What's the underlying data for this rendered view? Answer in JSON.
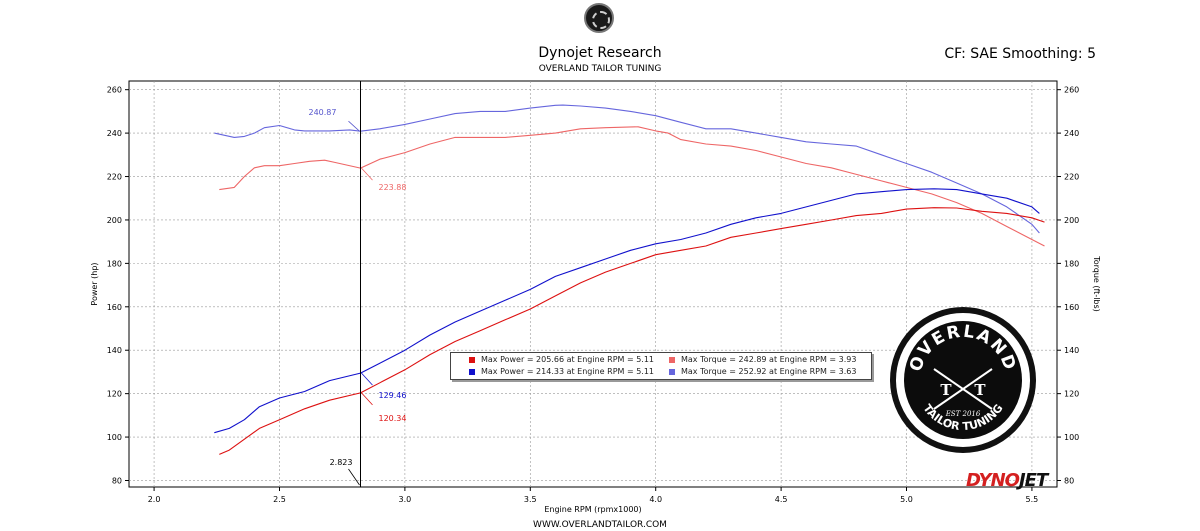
{
  "header": {
    "title": "Dynojet Research",
    "subtitle": "OVERLAND TAILOR TUNING",
    "cf_label": "CF: SAE Smoothing: 5"
  },
  "legend": {
    "items": [
      {
        "text": "Max Power = 205.66 at Engine RPM = 5.11",
        "color": "#dd1111"
      },
      {
        "text": "Max Power = 214.33 at Engine RPM = 5.11",
        "color": "#1111cc"
      },
      {
        "text": "Max Torque = 242.89 at Engine RPM = 3.93",
        "color": "#ee6666"
      },
      {
        "text": "Max Torque = 252.92 at Engine RPM = 3.63",
        "color": "#6666dd"
      }
    ]
  },
  "badge": {
    "top_text": "OVERLAND",
    "bottom_text": "TAILOR TUNING",
    "letters": [
      "T",
      "T"
    ],
    "est": "EST 2016"
  },
  "footer": {
    "url": "WWW.OVERLANDTAILOR.COM",
    "logo_left": "DYNO",
    "logo_right": "JET"
  },
  "chart_data": {
    "type": "line",
    "title": "Dynojet Research",
    "xlabel": "Engine RPM (rpmx1000)",
    "ylabel": "Power (hp)",
    "y2label": "Torque (ft-lbs)",
    "xlim": [
      1.9,
      5.6
    ],
    "ylim": [
      77,
      264
    ],
    "x_ticks": [
      "2.0",
      "2.5",
      "3.0",
      "3.5",
      "4.0",
      "4.5",
      "5.0",
      "5.5"
    ],
    "x_tick_values": [
      2.0,
      2.5,
      3.0,
      3.5,
      4.0,
      4.5,
      5.0,
      5.5
    ],
    "y_ticks": [
      "80",
      "100",
      "120",
      "140",
      "160",
      "180",
      "200",
      "220",
      "240",
      "260"
    ],
    "y_tick_values": [
      80,
      100,
      120,
      140,
      160,
      180,
      200,
      220,
      240,
      260
    ],
    "grid": true,
    "cursor": {
      "x": 2.823,
      "x_label": "2.823",
      "annotations": [
        {
          "value": 240.87,
          "label": "240.87",
          "color": "#5555cc"
        },
        {
          "value": 223.88,
          "label": "223.88",
          "color": "#ee6666"
        },
        {
          "value": 129.46,
          "label": "129.46",
          "color": "#1111cc"
        },
        {
          "value": 120.34,
          "label": "120.34",
          "color": "#dd1111"
        }
      ]
    },
    "series": [
      {
        "name": "Max Torque = 252.92 at Engine RPM = 3.63",
        "kind": "torque",
        "color": "#6666dd",
        "x": [
          2.24,
          2.32,
          2.36,
          2.4,
          2.44,
          2.5,
          2.56,
          2.6,
          2.7,
          2.78,
          2.823,
          2.9,
          3.0,
          3.1,
          3.2,
          3.3,
          3.4,
          3.5,
          3.6,
          3.63,
          3.7,
          3.8,
          3.9,
          4.0,
          4.1,
          4.2,
          4.3,
          4.4,
          4.5,
          4.6,
          4.7,
          4.8,
          4.9,
          5.0,
          5.1,
          5.2,
          5.3,
          5.4,
          5.5,
          5.53
        ],
        "y": [
          240,
          238,
          238.5,
          240,
          242.5,
          243.5,
          241.5,
          241,
          241,
          241.5,
          240.87,
          242,
          244,
          246.5,
          249,
          250,
          250,
          251.5,
          252.8,
          252.9,
          252.5,
          251.5,
          250,
          248,
          245,
          242,
          242,
          240,
          238,
          236,
          235,
          234,
          230,
          226,
          222,
          217,
          212,
          206,
          198,
          194
        ]
      },
      {
        "name": "Max Torque = 242.89 at Engine RPM = 3.93",
        "kind": "torque",
        "color": "#ee6666",
        "x": [
          2.26,
          2.32,
          2.36,
          2.4,
          2.44,
          2.5,
          2.56,
          2.62,
          2.68,
          2.72,
          2.823,
          2.9,
          3.0,
          3.1,
          3.2,
          3.3,
          3.4,
          3.5,
          3.6,
          3.7,
          3.8,
          3.93,
          4.0,
          4.05,
          4.1,
          4.2,
          4.3,
          4.4,
          4.5,
          4.6,
          4.7,
          4.8,
          4.9,
          5.0,
          5.1,
          5.2,
          5.3,
          5.4,
          5.5,
          5.55
        ],
        "y": [
          214,
          215,
          220,
          224,
          225,
          225,
          226,
          227,
          227.5,
          226.5,
          223.88,
          228,
          231,
          235,
          238,
          238,
          238,
          239,
          240,
          242,
          242.5,
          242.89,
          241,
          240,
          237,
          235,
          234,
          232,
          229,
          226,
          224,
          221,
          218,
          215,
          212,
          208,
          203,
          197,
          191,
          188
        ]
      },
      {
        "name": "Max Power = 214.33 at Engine RPM = 5.11",
        "kind": "power",
        "color": "#1111cc",
        "x": [
          2.24,
          2.3,
          2.36,
          2.42,
          2.5,
          2.6,
          2.7,
          2.823,
          2.9,
          3.0,
          3.1,
          3.2,
          3.3,
          3.4,
          3.5,
          3.6,
          3.7,
          3.8,
          3.9,
          4.0,
          4.1,
          4.2,
          4.3,
          4.4,
          4.5,
          4.6,
          4.7,
          4.8,
          4.9,
          5.0,
          5.11,
          5.2,
          5.3,
          5.4,
          5.5,
          5.53
        ],
        "y": [
          102,
          104,
          108,
          114,
          118,
          121,
          126,
          129.46,
          134,
          140,
          147,
          153,
          158,
          163,
          168,
          174,
          178,
          182,
          186,
          189,
          191,
          194,
          198,
          201,
          203,
          206,
          209,
          212,
          213,
          214,
          214.33,
          214,
          212,
          210,
          206,
          203
        ]
      },
      {
        "name": "Max Power = 205.66 at Engine RPM = 5.11",
        "kind": "power",
        "color": "#dd1111",
        "x": [
          2.26,
          2.3,
          2.36,
          2.42,
          2.5,
          2.6,
          2.7,
          2.823,
          2.9,
          3.0,
          3.1,
          3.2,
          3.3,
          3.4,
          3.5,
          3.6,
          3.7,
          3.8,
          3.9,
          4.0,
          4.1,
          4.2,
          4.3,
          4.4,
          4.5,
          4.6,
          4.7,
          4.8,
          4.9,
          5.0,
          5.11,
          5.2,
          5.3,
          5.4,
          5.5,
          5.55
        ],
        "y": [
          92,
          94,
          99,
          104,
          108,
          113,
          117,
          120.34,
          125,
          131,
          138,
          144,
          149,
          154,
          159,
          165,
          171,
          176,
          180,
          184,
          186,
          188,
          192,
          194,
          196,
          198,
          200,
          202,
          203,
          205,
          205.66,
          205.5,
          204,
          203,
          201,
          199
        ]
      }
    ]
  }
}
